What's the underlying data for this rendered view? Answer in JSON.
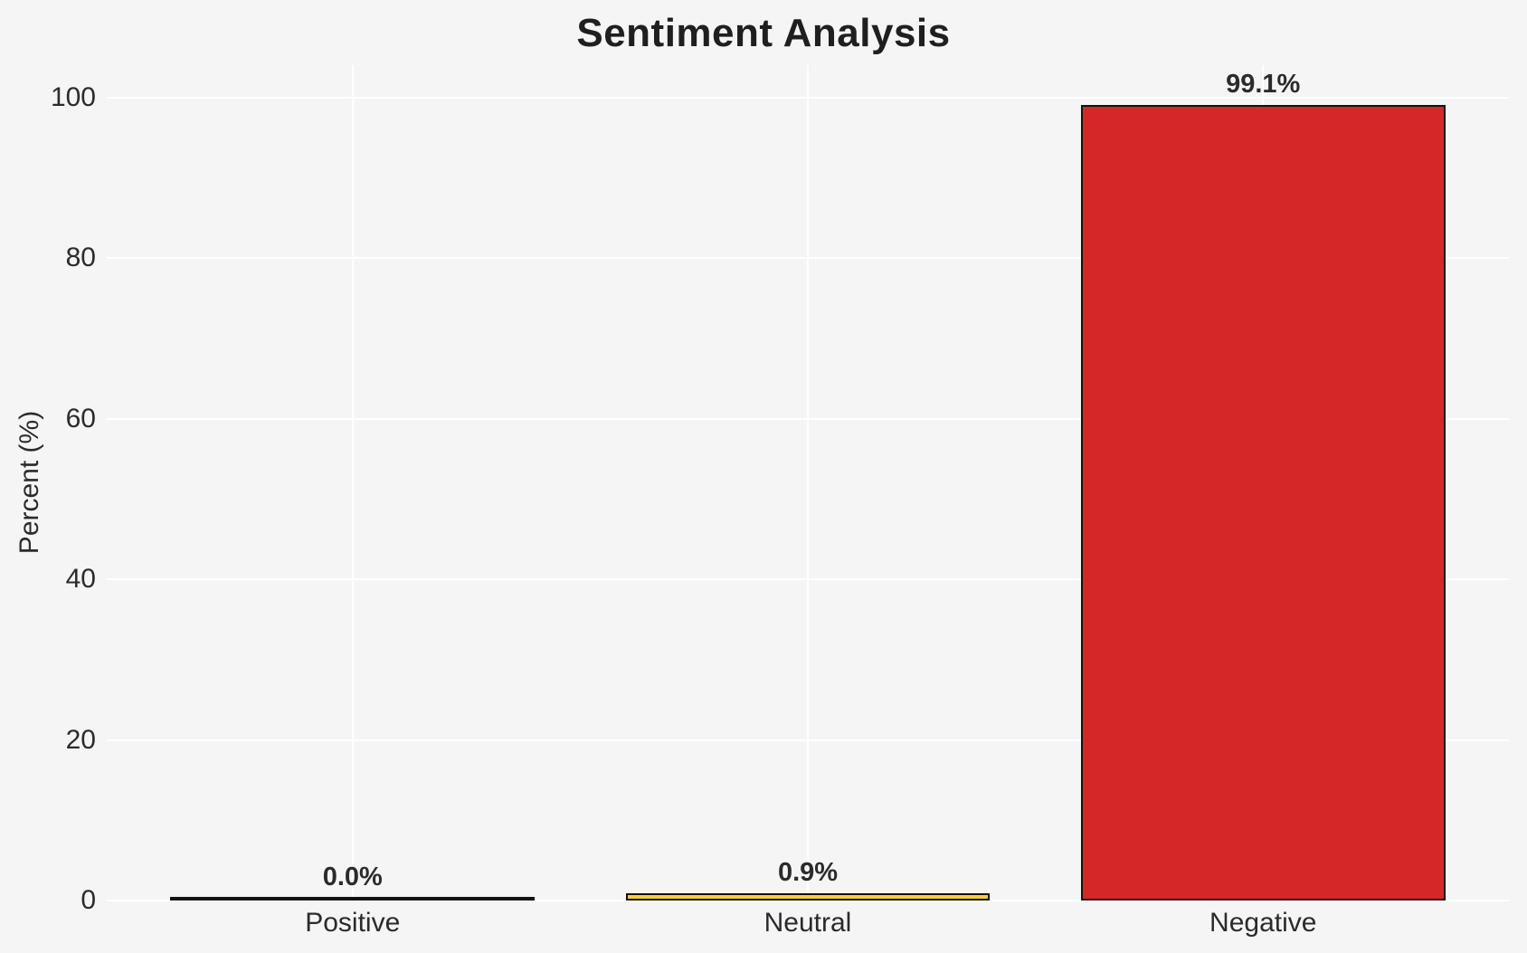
{
  "chart_data": {
    "type": "bar",
    "title": "Sentiment Analysis",
    "xlabel": "",
    "ylabel": "Percent (%)",
    "categories": [
      "Positive",
      "Neutral",
      "Negative"
    ],
    "values": [
      0.0,
      0.9,
      99.1
    ],
    "bars": [
      {
        "label": "Positive",
        "value": 0.0,
        "value_label": "0.0%",
        "color": null
      },
      {
        "label": "Neutral",
        "value": 0.9,
        "value_label": "0.9%",
        "color": "#f5ce3c"
      },
      {
        "label": "Negative",
        "value": 99.1,
        "value_label": "99.1%",
        "color": "#d62728"
      }
    ],
    "yticks": [
      0,
      20,
      40,
      60,
      80,
      100
    ],
    "ylim": [
      0,
      104
    ],
    "grid": true,
    "legend_position": "none",
    "colors": {
      "background": "#f5f5f5",
      "gridline": "#ffffff",
      "bar_edge": "#121212",
      "text": "#2b2b2b",
      "title_text": "#1f1f1f"
    }
  }
}
